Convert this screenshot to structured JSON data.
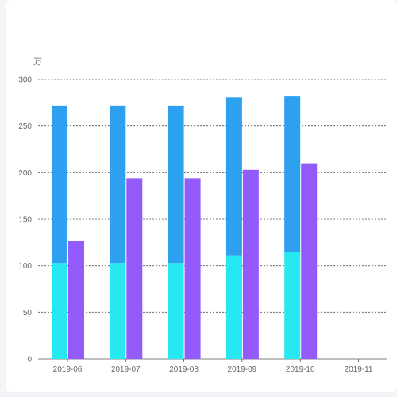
{
  "chart_data": {
    "type": "bar",
    "unit": "万",
    "categories": [
      "2019-06",
      "2019-07",
      "2019-08",
      "2019-09",
      "2019-10",
      "2019-11"
    ],
    "ylim": [
      0,
      300
    ],
    "yticks": [
      "0",
      "50",
      "100",
      "150",
      "200",
      "250",
      "300"
    ],
    "grid": true,
    "series": [
      {
        "stack": "A",
        "values": [
          103,
          103,
          103,
          111,
          115,
          null
        ],
        "color": "#27e7f0"
      },
      {
        "stack": "A",
        "values": [
          169,
          169,
          169,
          170,
          167,
          null
        ],
        "color": "#2ea0f0"
      },
      {
        "stack": "B",
        "values": [
          127,
          194,
          194,
          203,
          210,
          null
        ],
        "color": "#935bfb"
      }
    ]
  }
}
